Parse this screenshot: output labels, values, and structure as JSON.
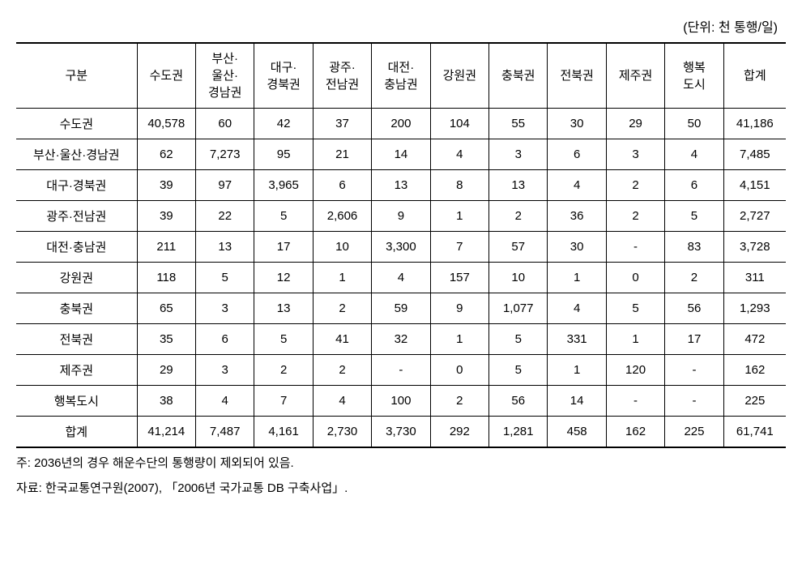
{
  "unit_label": "(단위: 천 통행/일)",
  "table": {
    "columns": [
      "구분",
      "수도권",
      "부산·\n울산·\n경남권",
      "대구·\n경북권",
      "광주·\n전남권",
      "대전·\n충남권",
      "강원권",
      "충북권",
      "전북권",
      "제주권",
      "행복\n도시",
      "합계"
    ],
    "rows": [
      {
        "label": "수도권",
        "cells": [
          "40,578",
          "60",
          "42",
          "37",
          "200",
          "104",
          "55",
          "30",
          "29",
          "50",
          "41,186"
        ]
      },
      {
        "label": "부산·울산·경남권",
        "cells": [
          "62",
          "7,273",
          "95",
          "21",
          "14",
          "4",
          "3",
          "6",
          "3",
          "4",
          "7,485"
        ]
      },
      {
        "label": "대구·경북권",
        "cells": [
          "39",
          "97",
          "3,965",
          "6",
          "13",
          "8",
          "13",
          "4",
          "2",
          "6",
          "4,151"
        ]
      },
      {
        "label": "광주·전남권",
        "cells": [
          "39",
          "22",
          "5",
          "2,606",
          "9",
          "1",
          "2",
          "36",
          "2",
          "5",
          "2,727"
        ]
      },
      {
        "label": "대전·충남권",
        "cells": [
          "211",
          "13",
          "17",
          "10",
          "3,300",
          "7",
          "57",
          "30",
          "-",
          "83",
          "3,728"
        ]
      },
      {
        "label": "강원권",
        "cells": [
          "118",
          "5",
          "12",
          "1",
          "4",
          "157",
          "10",
          "1",
          "0",
          "2",
          "311"
        ]
      },
      {
        "label": "충북권",
        "cells": [
          "65",
          "3",
          "13",
          "2",
          "59",
          "9",
          "1,077",
          "4",
          "5",
          "56",
          "1,293"
        ]
      },
      {
        "label": "전북권",
        "cells": [
          "35",
          "6",
          "5",
          "41",
          "32",
          "1",
          "5",
          "331",
          "1",
          "17",
          "472"
        ]
      },
      {
        "label": "제주권",
        "cells": [
          "29",
          "3",
          "2",
          "2",
          "-",
          "0",
          "5",
          "1",
          "120",
          "-",
          "162"
        ]
      },
      {
        "label": "행복도시",
        "cells": [
          "38",
          "4",
          "7",
          "4",
          "100",
          "2",
          "56",
          "14",
          "-",
          "-",
          "225"
        ]
      },
      {
        "label": "합계",
        "cells": [
          "41,214",
          "7,487",
          "4,161",
          "2,730",
          "3,730",
          "292",
          "1,281",
          "458",
          "162",
          "225",
          "61,741"
        ]
      }
    ]
  },
  "footnotes": [
    "주: 2036년의 경우 해운수단의 통행량이 제외되어 있음.",
    "자료: 한국교통연구원(2007), 「2006년 국가교통 DB 구축사업」."
  ],
  "styling": {
    "background_color": "#ffffff",
    "text_color": "#000000",
    "border_color": "#000000",
    "font_family": "Malgun Gothic",
    "body_fontsize": 15,
    "unit_fontsize": 16,
    "footnote_fontsize": 15,
    "outer_border_width": 2,
    "inner_border_width": 1,
    "cell_padding_v": 8,
    "cell_padding_h": 4,
    "col_label_width": 140,
    "col_data_width": 68,
    "col_sum_width": 72
  }
}
